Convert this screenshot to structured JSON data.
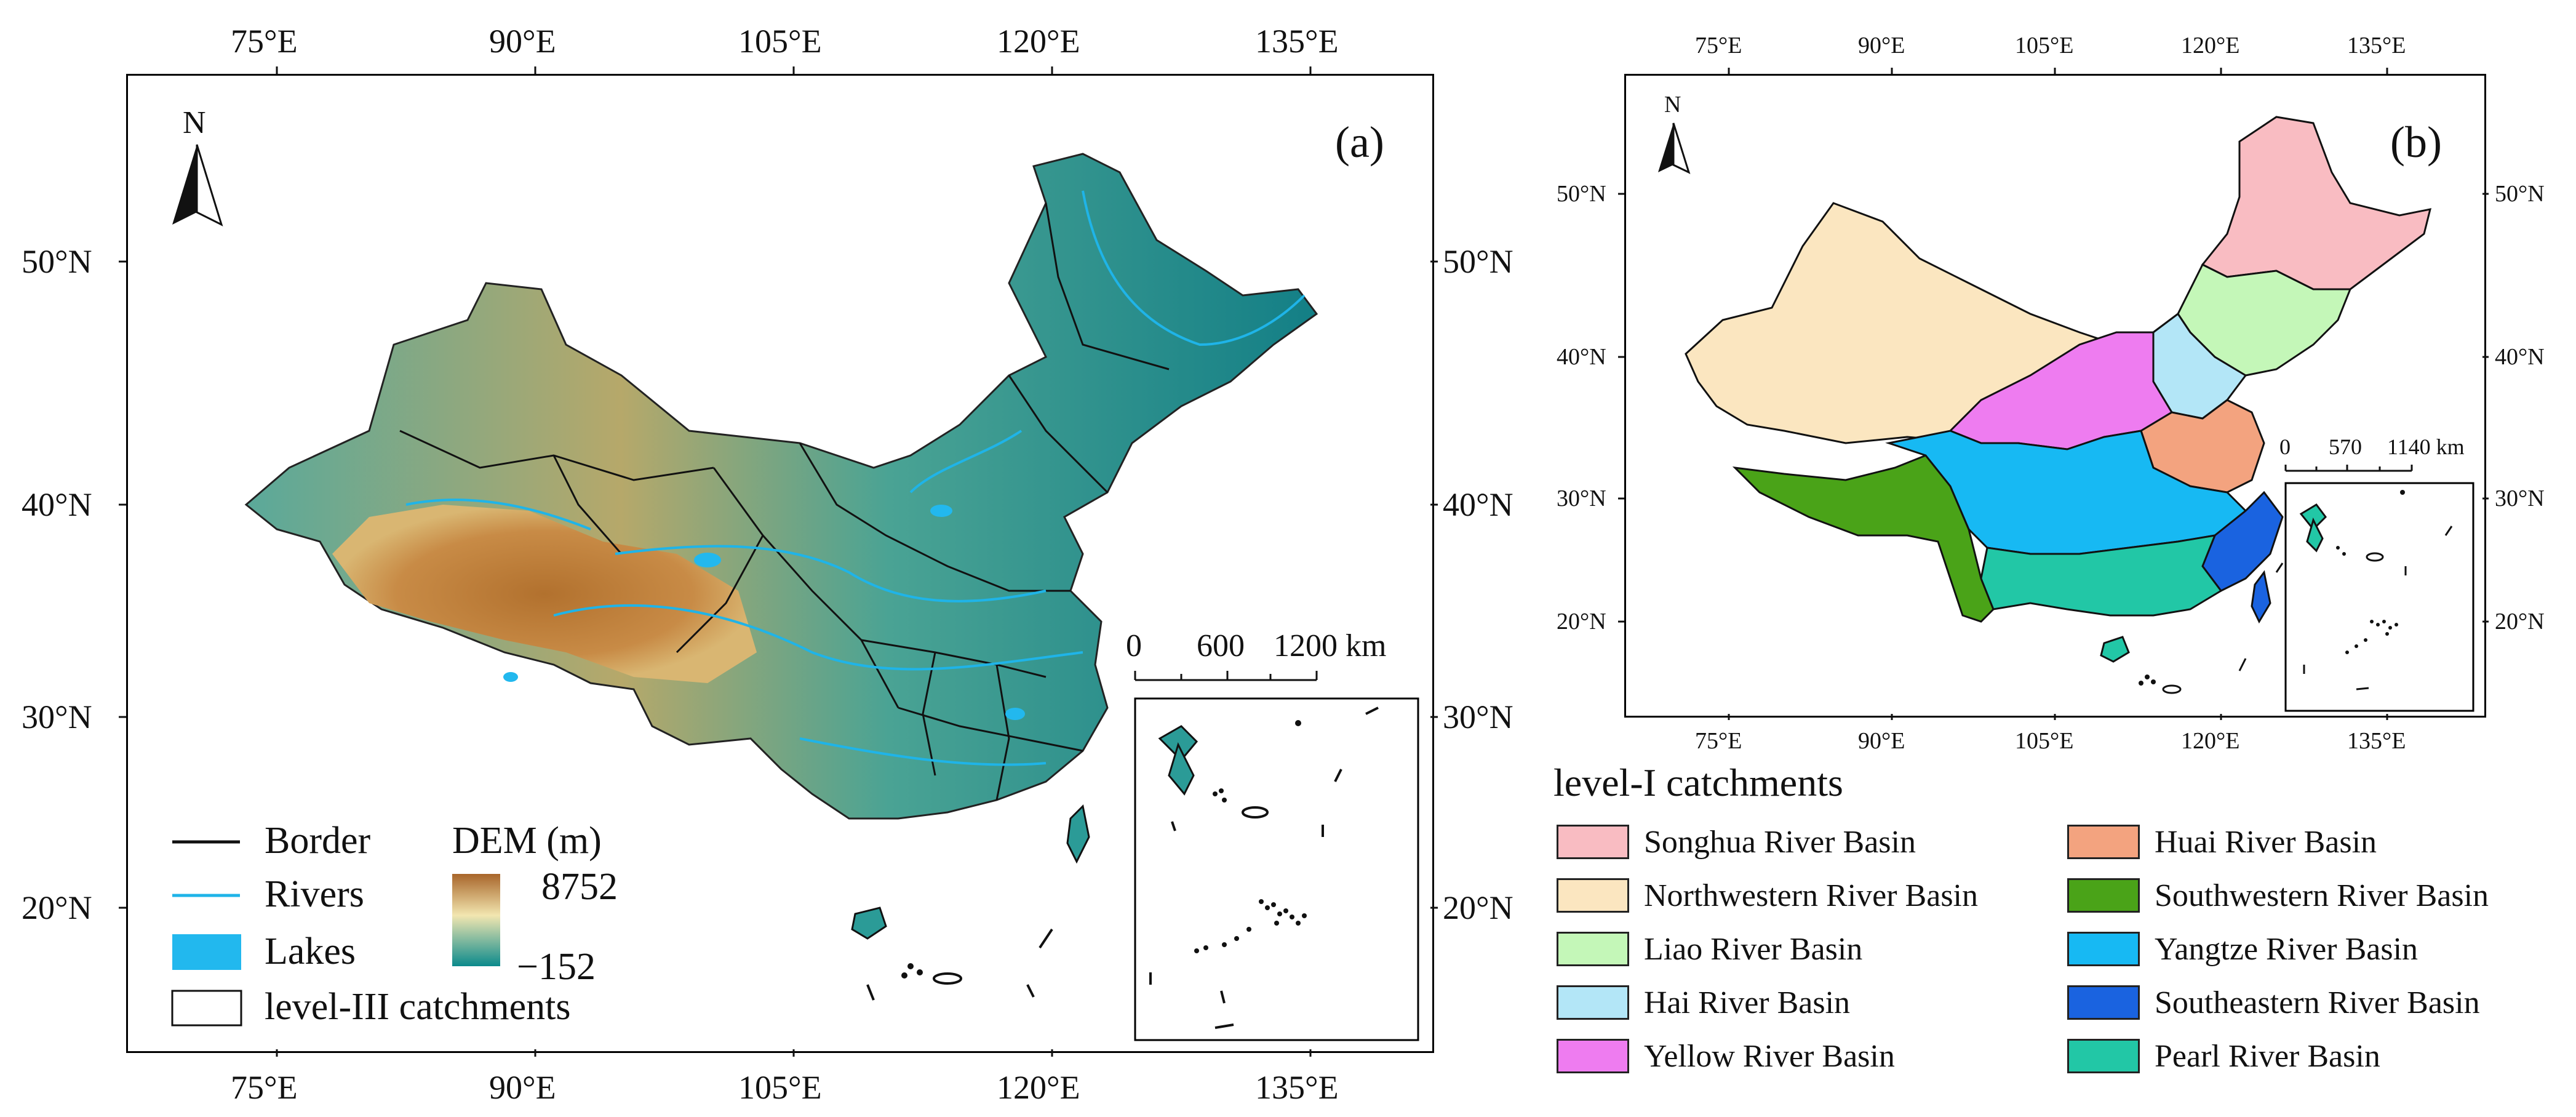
{
  "panel_a": {
    "label": "(a)",
    "north_label": "N",
    "x_ticks": [
      "75°E",
      "90°E",
      "105°E",
      "120°E",
      "135°E"
    ],
    "y_ticks": [
      "50°N",
      "40°N",
      "30°N",
      "20°N"
    ],
    "scale_bar": {
      "labels": [
        "0",
        "600",
        "1200 km"
      ]
    },
    "legend": {
      "border": "Border",
      "rivers": "Rivers",
      "lakes": "Lakes",
      "catchments": "level-III catchments",
      "dem_title": "DEM (m)",
      "dem_max": "8752",
      "dem_min": "−152"
    },
    "colors": {
      "river": "#1fb4e8",
      "lake": "#22b8ee",
      "dem_high": "#a8652a",
      "dem_mid": "#f2e6b0",
      "dem_low": "#0b8a8c"
    }
  },
  "panel_b": {
    "label": "(b)",
    "north_label": "N",
    "x_ticks": [
      "75°E",
      "90°E",
      "105°E",
      "120°E",
      "135°E"
    ],
    "y_ticks": [
      "50°N",
      "40°N",
      "30°N",
      "20°N"
    ],
    "scale_bar": {
      "labels": [
        "0",
        "570",
        "1140 km"
      ]
    },
    "legend_title": "level-I catchments",
    "basins": [
      {
        "name": "Songhua River Basin",
        "color": "#f9bcc2"
      },
      {
        "name": "Northwestern River Basin",
        "color": "#fbe6c0"
      },
      {
        "name": "Liao River Basin",
        "color": "#c4f7b8"
      },
      {
        "name": "Hai River Basin",
        "color": "#b3e6f7"
      },
      {
        "name": "Yellow River Basin",
        "color": "#ee7cf0"
      },
      {
        "name": "Huai River Basin",
        "color": "#f3a37f"
      },
      {
        "name": "Southwestern River Basin",
        "color": "#4aa318"
      },
      {
        "name": "Yangtze River Basin",
        "color": "#17b9f3"
      },
      {
        "name": "Southeastern River Basin",
        "color": "#1a63e0"
      },
      {
        "name": "Pearl River Basin",
        "color": "#22c7a6"
      }
    ]
  }
}
